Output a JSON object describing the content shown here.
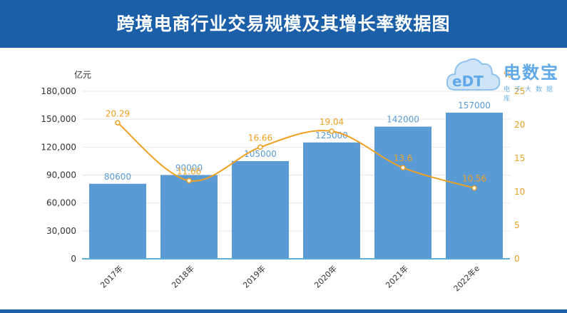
{
  "title": "跨境电商行业交易规模及其增长率数据图",
  "watermark": {
    "main": "电数宝",
    "sub": "电子大数据库",
    "logo_text": "eDT"
  },
  "colors": {
    "header": "#1a5fa8",
    "bar": "#5b9bd5",
    "line": "#f0a020",
    "axis_right": "#e8a020"
  },
  "chart_data": {
    "type": "bar",
    "categories": [
      "2017年",
      "2018年",
      "2019年",
      "2020年",
      "2021年",
      "2022年e"
    ],
    "series": [
      {
        "values": [
          80600,
          90000,
          105000,
          125000,
          142000,
          157000
        ],
        "axis": "left"
      },
      {
        "type": "line",
        "values": [
          20.29,
          11.66,
          16.66,
          19.04,
          13.6,
          10.56
        ],
        "axis": "right"
      }
    ],
    "ylabel": "亿元",
    "ylabel_right": "%",
    "ylim": [
      0,
      180000
    ],
    "ylim_right": [
      0,
      25
    ],
    "yticks": [
      "0",
      "30,000",
      "60,000",
      "90,000",
      "120,000",
      "150,000",
      "180,000"
    ],
    "yticks_right": [
      "0",
      "5",
      "10",
      "15",
      "20",
      "25"
    ],
    "grid": true
  }
}
